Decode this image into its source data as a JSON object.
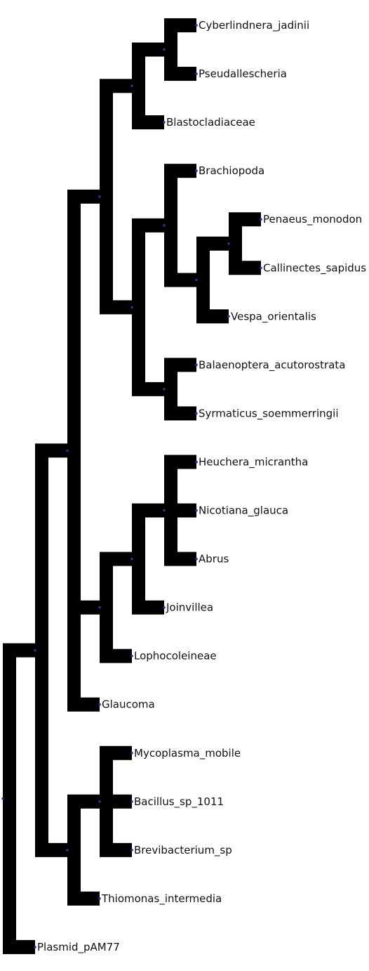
{
  "tree": {
    "id": "n1",
    "children": [
      {
        "id": "n2",
        "children": [
          {
            "id": "n3",
            "children": [
              {
                "id": "n4",
                "children": [
                  {
                    "id": "n5",
                    "children": [
                      {
                        "id": "n6",
                        "children": [
                          {
                            "leaf": "Cyberlindnera_jadinii"
                          },
                          {
                            "leaf": "Pseudallescheria"
                          }
                        ]
                      },
                      {
                        "leaf": "Blastocladiaceae"
                      }
                    ]
                  },
                  {
                    "id": "n7",
                    "children": [
                      {
                        "id": "n8",
                        "children": [
                          {
                            "leaf": "Brachiopoda"
                          },
                          {
                            "id": "n9",
                            "children": [
                              {
                                "id": "n10",
                                "children": [
                                  {
                                    "leaf": "Penaeus_monodon"
                                  },
                                  {
                                    "leaf": "Callinectes_sapidus"
                                  }
                                ]
                              },
                              {
                                "leaf": "Vespa_orientalis"
                              }
                            ]
                          }
                        ]
                      },
                      {
                        "id": "n11",
                        "children": [
                          {
                            "leaf": "Balaenoptera_acutorostrata"
                          },
                          {
                            "leaf": "Syrmaticus_soemmerringii"
                          }
                        ]
                      }
                    ]
                  }
                ]
              },
              {
                "id": "n12",
                "children": [
                  {
                    "id": "n13",
                    "children": [
                      {
                        "id": "n14",
                        "children": [
                          {
                            "leaf": "Heuchera_micrantha"
                          },
                          {
                            "leaf": "Nicotiana_glauca"
                          },
                          {
                            "leaf": "Abrus"
                          }
                        ]
                      },
                      {
                        "leaf": "Joinvillea"
                      }
                    ]
                  },
                  {
                    "leaf": "Lophocoleineae"
                  }
                ]
              },
              {
                "leaf": "Glaucoma"
              }
            ]
          },
          {
            "id": "n15",
            "children": [
              {
                "id": "n16",
                "children": [
                  {
                    "leaf": "Mycoplasma_mobile"
                  },
                  {
                    "leaf": "Bacillus_sp_1011"
                  },
                  {
                    "leaf": "Brevibacterium_sp"
                  }
                ]
              },
              {
                "leaf": "Thiomonas_intermedia"
              }
            ]
          }
        ]
      },
      {
        "leaf": "Plasmid_pAM77"
      }
    ]
  },
  "colors": {
    "branch": "#000000",
    "node_dot": "#1f3a93",
    "label": "#111111"
  }
}
